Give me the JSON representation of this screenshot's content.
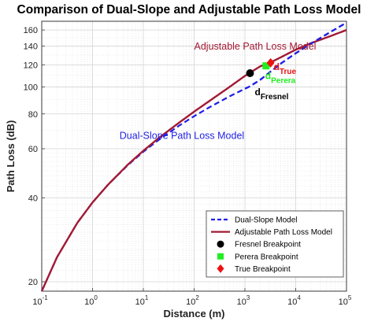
{
  "chart_data": {
    "type": "line",
    "title": "Comparison of Dual-Slope and Adjustable Path Loss Model",
    "xlabel": "Distance (m)",
    "ylabel": "Path Loss (dB)",
    "x_scale": "log",
    "y_scale": "log",
    "xlim": [
      0.1,
      100000
    ],
    "ylim": [
      18.5,
      172
    ],
    "grid": true,
    "x_ticks": [
      {
        "value": 0.1,
        "base": "10",
        "exp": "-1"
      },
      {
        "value": 1,
        "base": "10",
        "exp": "0"
      },
      {
        "value": 10,
        "base": "10",
        "exp": "1"
      },
      {
        "value": 100,
        "base": "10",
        "exp": "2"
      },
      {
        "value": 1000,
        "base": "10",
        "exp": "3"
      },
      {
        "value": 10000,
        "base": "10",
        "exp": "4"
      },
      {
        "value": 100000,
        "base": "10",
        "exp": "5"
      }
    ],
    "y_ticks": [
      20,
      40,
      60,
      80,
      100,
      120,
      140,
      160
    ],
    "series": [
      {
        "name": "Dual-Slope Model",
        "color": "#1f1fe6",
        "dash": "dashed",
        "x": [
          0.1,
          0.2,
          0.5,
          1,
          2,
          5,
          10,
          20,
          50,
          100,
          200,
          500,
          1000,
          1260,
          2000,
          5000,
          10000,
          20000,
          50000,
          100000
        ],
        "y": [
          18.5,
          24.5,
          32.5,
          38.5,
          44.5,
          52.5,
          58.5,
          64.5,
          72.5,
          78.5,
          84.5,
          92.5,
          98.5,
          100.5,
          106,
          121,
          132,
          143,
          158,
          170
        ]
      },
      {
        "name": "Adjustable Path Loss Model",
        "color": "#a21a34",
        "dash": "solid",
        "x": [
          0.1,
          0.2,
          0.5,
          1,
          2,
          5,
          10,
          20,
          50,
          100,
          200,
          500,
          1000,
          2000,
          3200,
          5000,
          10000,
          20000,
          50000,
          100000
        ],
        "y": [
          18.5,
          24.5,
          32.5,
          38.5,
          44.5,
          52.7,
          59,
          65.5,
          74.3,
          81.5,
          89,
          100,
          109.5,
          118.5,
          122.5,
          127.5,
          136,
          143.5,
          152.5,
          160
        ]
      }
    ],
    "points": [
      {
        "name": "Fresnel Breakpoint",
        "x": 1260,
        "y": 112,
        "color": "#000000",
        "marker": "circle"
      },
      {
        "name": "Perera Breakpoint",
        "x": 2600,
        "y": 119,
        "color": "#22ee22",
        "marker": "square"
      },
      {
        "name": "True Breakpoint",
        "x": 3200,
        "y": 122,
        "color": "#ee1111",
        "marker": "diamond"
      }
    ],
    "annotations": [
      {
        "text": "Adjustable Path Loss Model",
        "color": "#a21a34",
        "x": 100,
        "y": 136
      },
      {
        "text": "Dual-Slope Path Loss Model",
        "color": "#1f1fe6",
        "x": 3.4,
        "y": 65
      }
    ],
    "breakpoint_labels": [
      {
        "base": "d",
        "sub": "Fresnel",
        "color": "#000000"
      },
      {
        "base": "d",
        "sub": "Perera",
        "color": "#22ee22"
      },
      {
        "base": "d",
        "sub": "True",
        "color": "#ee1111"
      }
    ],
    "legend_location": "bottom-right"
  }
}
